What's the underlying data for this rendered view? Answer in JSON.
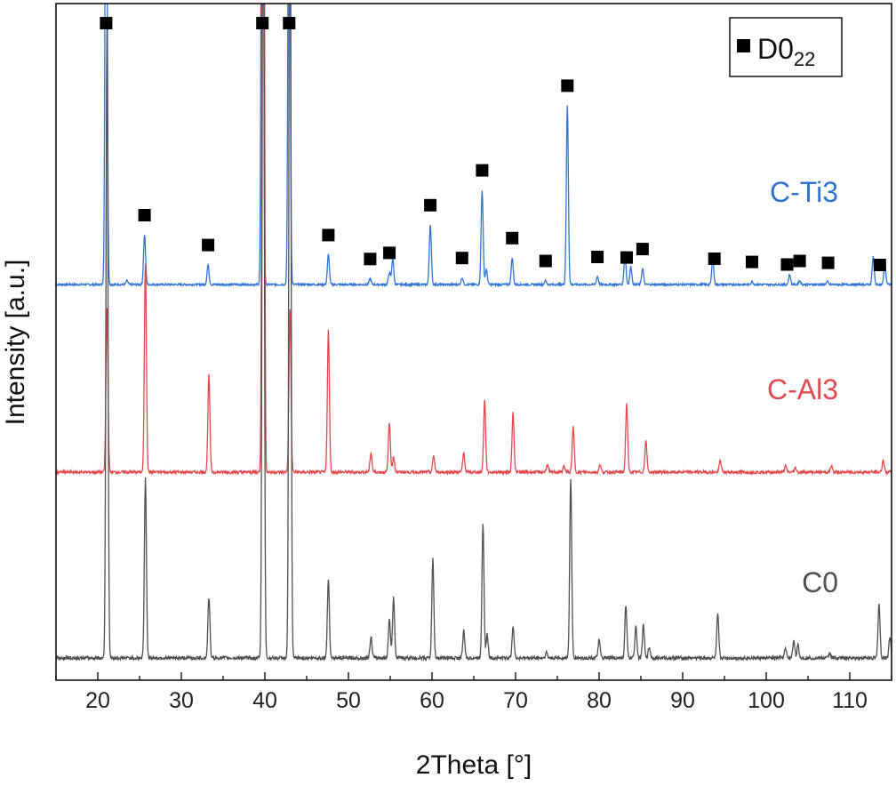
{
  "chart_data": {
    "type": "line",
    "title": "",
    "xlabel": "2Theta [°]",
    "ylabel": "Intensity [a.u.]",
    "xlim": [
      15,
      115
    ],
    "xticks": [
      20,
      30,
      40,
      50,
      60,
      70,
      80,
      90,
      100,
      110
    ],
    "yticks_shown": false,
    "grid": false,
    "legend": {
      "position": "top-right",
      "marker": "filled-square",
      "label": "D0",
      "label_subscript": "22"
    },
    "series": [
      {
        "name": "C-Ti3",
        "color": "#2f74d0",
        "offset": 2.0,
        "peaks": [
          [
            21.0,
            6.0
          ],
          [
            23.5,
            0.04
          ],
          [
            25.6,
            0.5
          ],
          [
            33.2,
            0.2
          ],
          [
            39.7,
            8.0
          ],
          [
            42.9,
            6.0
          ],
          [
            47.6,
            0.3
          ],
          [
            52.6,
            0.06
          ],
          [
            54.9,
            0.12
          ],
          [
            55.3,
            0.26
          ],
          [
            59.8,
            0.6
          ],
          [
            63.6,
            0.07
          ],
          [
            66.0,
            0.95
          ],
          [
            66.5,
            0.15
          ],
          [
            69.6,
            0.27
          ],
          [
            73.6,
            0.04
          ],
          [
            76.2,
            1.8
          ],
          [
            79.8,
            0.08
          ],
          [
            83.1,
            0.3
          ],
          [
            83.8,
            0.18
          ],
          [
            85.2,
            0.16
          ],
          [
            93.6,
            0.25
          ],
          [
            98.3,
            0.03
          ],
          [
            102.8,
            0.1
          ],
          [
            104.0,
            0.04
          ],
          [
            107.3,
            0.03
          ],
          [
            112.8,
            0.28
          ],
          [
            114.2,
            0.2
          ]
        ],
        "markers_at": [
          21.0,
          25.6,
          33.2,
          39.7,
          42.9,
          47.6,
          52.6,
          54.9,
          59.8,
          63.6,
          66.0,
          69.6,
          73.6,
          76.2,
          79.8,
          83.3,
          85.2,
          93.8,
          98.3,
          102.5,
          104.0,
          107.4,
          113.6
        ]
      },
      {
        "name": "C-Al3",
        "color": "#e0494d",
        "offset": 1.0,
        "peaks": [
          [
            21.1,
            1.1
          ],
          [
            25.7,
            1.4
          ],
          [
            33.3,
            0.65
          ],
          [
            39.8,
            8.0
          ],
          [
            43.0,
            1.1
          ],
          [
            47.6,
            0.95
          ],
          [
            52.7,
            0.13
          ],
          [
            54.9,
            0.33
          ],
          [
            55.4,
            0.1
          ],
          [
            60.2,
            0.11
          ],
          [
            63.8,
            0.13
          ],
          [
            66.3,
            0.48
          ],
          [
            69.7,
            0.4
          ],
          [
            73.8,
            0.05
          ],
          [
            75.8,
            0.04
          ],
          [
            76.9,
            0.3
          ],
          [
            80.1,
            0.05
          ],
          [
            83.3,
            0.46
          ],
          [
            85.6,
            0.21
          ],
          [
            94.5,
            0.08
          ],
          [
            102.3,
            0.04
          ],
          [
            103.5,
            0.03
          ],
          [
            107.8,
            0.04
          ],
          [
            114.0,
            0.08
          ]
        ],
        "markers_at": []
      },
      {
        "name": "C0",
        "color": "#505050",
        "offset": 0.0,
        "peaks": [
          [
            21.1,
            3.5
          ],
          [
            25.7,
            1.0
          ],
          [
            33.3,
            0.34
          ],
          [
            39.8,
            5.0
          ],
          [
            43.0,
            5.0
          ],
          [
            47.6,
            0.44
          ],
          [
            52.7,
            0.12
          ],
          [
            54.9,
            0.22
          ],
          [
            55.4,
            0.34
          ],
          [
            60.1,
            0.55
          ],
          [
            63.8,
            0.15
          ],
          [
            66.1,
            0.75
          ],
          [
            66.6,
            0.13
          ],
          [
            69.7,
            0.18
          ],
          [
            73.7,
            0.03
          ],
          [
            76.6,
            1.0
          ],
          [
            80.0,
            0.1
          ],
          [
            83.2,
            0.29
          ],
          [
            84.4,
            0.18
          ],
          [
            85.3,
            0.18
          ],
          [
            86.0,
            0.06
          ],
          [
            94.2,
            0.24
          ],
          [
            102.3,
            0.05
          ],
          [
            103.3,
            0.1
          ],
          [
            103.8,
            0.07
          ],
          [
            107.6,
            0.03
          ],
          [
            113.5,
            0.3
          ],
          [
            114.8,
            0.12
          ]
        ],
        "markers_at": []
      }
    ]
  }
}
